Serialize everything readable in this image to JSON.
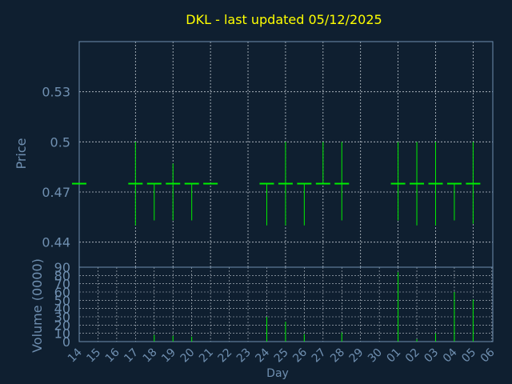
{
  "title": "DKL - last updated 05/12/2025",
  "colors": {
    "background": "#0f1f30",
    "title": "#ffff00",
    "axis_text": "#6f8fb0",
    "frame": "#6f8fb0",
    "grid": "#c0c8d0",
    "price_bar": "#00ee00",
    "volume_bar": "#00ee00"
  },
  "chart_data": [
    {
      "type": "ohlc",
      "ylabel": "Price",
      "ylim": [
        0.425,
        0.56
      ],
      "yticks": [
        0.44,
        0.47,
        0.5,
        0.53
      ],
      "ytick_labels": [
        "0.44",
        "0.47",
        "0.5",
        "0.53"
      ],
      "grid": true,
      "x": [
        "14",
        "15",
        "16",
        "17",
        "18",
        "19",
        "20",
        "21",
        "22",
        "23",
        "24",
        "25",
        "26",
        "27",
        "28",
        "29",
        "30",
        "01",
        "02",
        "03",
        "04",
        "05",
        "06"
      ],
      "bars": [
        {
          "x": "14",
          "open": 0.475,
          "high": 0.475,
          "low": 0.475,
          "close": 0.475
        },
        {
          "x": "17",
          "open": 0.475,
          "high": 0.5,
          "low": 0.45,
          "close": 0.475
        },
        {
          "x": "18",
          "open": 0.475,
          "high": 0.475,
          "low": 0.453,
          "close": 0.475
        },
        {
          "x": "19",
          "open": 0.475,
          "high": 0.487,
          "low": 0.453,
          "close": 0.475
        },
        {
          "x": "20",
          "open": 0.475,
          "high": 0.475,
          "low": 0.453,
          "close": 0.475
        },
        {
          "x": "21",
          "open": 0.475,
          "high": 0.475,
          "low": 0.475,
          "close": 0.475
        },
        {
          "x": "24",
          "open": 0.475,
          "high": 0.475,
          "low": 0.45,
          "close": 0.475
        },
        {
          "x": "25",
          "open": 0.475,
          "high": 0.5,
          "low": 0.45,
          "close": 0.475
        },
        {
          "x": "26",
          "open": 0.475,
          "high": 0.475,
          "low": 0.45,
          "close": 0.475
        },
        {
          "x": "27",
          "open": 0.475,
          "high": 0.5,
          "low": 0.475,
          "close": 0.475
        },
        {
          "x": "28",
          "open": 0.475,
          "high": 0.5,
          "low": 0.453,
          "close": 0.475
        },
        {
          "x": "01",
          "open": 0.475,
          "high": 0.5,
          "low": 0.453,
          "close": 0.475
        },
        {
          "x": "02",
          "open": 0.475,
          "high": 0.5,
          "low": 0.45,
          "close": 0.475
        },
        {
          "x": "03",
          "open": 0.475,
          "high": 0.5,
          "low": 0.45,
          "close": 0.475
        },
        {
          "x": "04",
          "open": 0.475,
          "high": 0.475,
          "low": 0.453,
          "close": 0.475
        },
        {
          "x": "05",
          "open": 0.475,
          "high": 0.5,
          "low": 0.451,
          "close": 0.475
        }
      ]
    },
    {
      "type": "bar",
      "ylabel": "Volume (0000)",
      "xlabel": "Day",
      "ylim": [
        0,
        90
      ],
      "yticks": [
        0,
        10,
        20,
        30,
        40,
        50,
        60,
        70,
        80,
        90
      ],
      "ytick_labels": [
        "0",
        "10",
        "20",
        "30",
        "40",
        "50",
        "60",
        "70",
        "80",
        "90"
      ],
      "grid": true,
      "categories": [
        "14",
        "15",
        "16",
        "17",
        "18",
        "19",
        "20",
        "21",
        "22",
        "23",
        "24",
        "25",
        "26",
        "27",
        "28",
        "29",
        "30",
        "01",
        "02",
        "03",
        "04",
        "05",
        "06"
      ],
      "bars": [
        {
          "x": "18",
          "value": 8
        },
        {
          "x": "19",
          "value": 7
        },
        {
          "x": "20",
          "value": 6
        },
        {
          "x": "24",
          "value": 30
        },
        {
          "x": "25",
          "value": 24
        },
        {
          "x": "26",
          "value": 9
        },
        {
          "x": "28",
          "value": 11
        },
        {
          "x": "01",
          "value": 84
        },
        {
          "x": "02",
          "value": 3
        },
        {
          "x": "03",
          "value": 10
        },
        {
          "x": "04",
          "value": 60
        },
        {
          "x": "05",
          "value": 51
        }
      ]
    }
  ]
}
